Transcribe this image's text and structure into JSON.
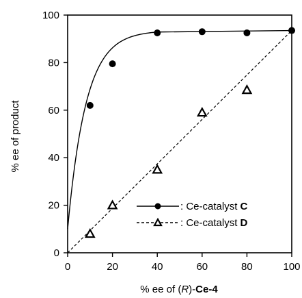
{
  "chart_data": {
    "type": "scatter",
    "xlabel": {
      "prefix": "% ee of (",
      "italic": "R",
      "suffix": ")-",
      "bold": "Ce-4"
    },
    "ylabel": "% ee of product",
    "xlim": [
      0,
      100
    ],
    "ylim": [
      0,
      100
    ],
    "xticks": [
      "0",
      "20",
      "40",
      "60",
      "80",
      "100"
    ],
    "yticks": [
      "0",
      "20",
      "40",
      "60",
      "80",
      "100"
    ],
    "grid": false,
    "legend_position": "bottom-right",
    "series": [
      {
        "legend_prefix": ": Ce-catalyst ",
        "legend_bold": "C",
        "marker": "circle",
        "line_style": "solid",
        "color": "#000000",
        "x": [
          10,
          20,
          40,
          60,
          80,
          100
        ],
        "y": [
          62,
          79.5,
          92.5,
          93,
          92.5,
          93.5
        ]
      },
      {
        "legend_prefix": ": Ce-catalyst ",
        "legend_bold": "D",
        "marker": "triangle",
        "line_style": "dashed",
        "color": "#000000",
        "x": [
          10,
          20,
          40,
          60,
          80
        ],
        "y": [
          8,
          20,
          35,
          59,
          68.5
        ]
      }
    ]
  }
}
